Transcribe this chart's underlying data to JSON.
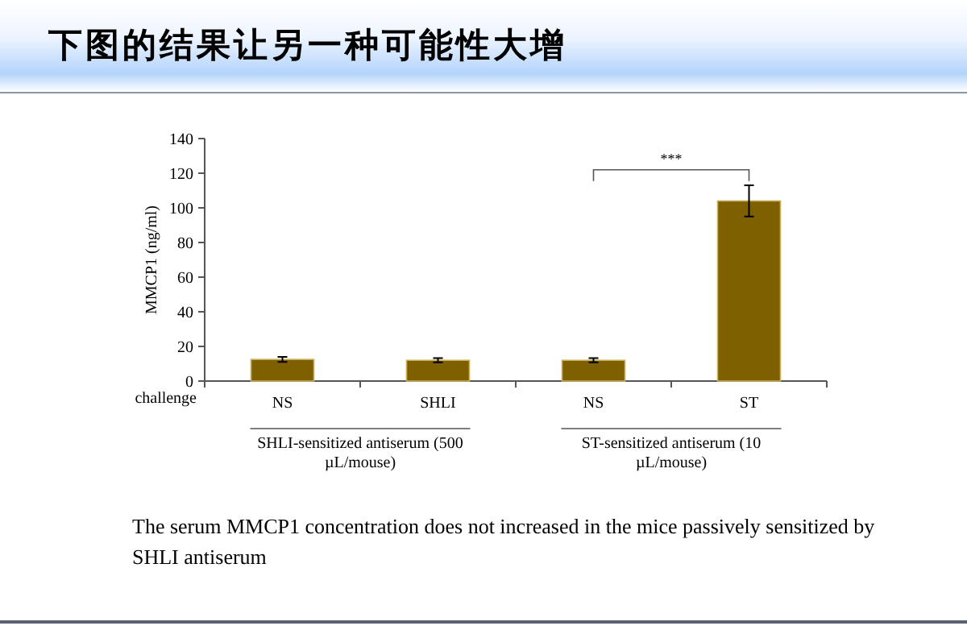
{
  "chart_data": {
    "type": "bar",
    "title": "下图的结果让另一种可能性大增",
    "ylabel": "MMCP1 (ng/ml)",
    "categories": [
      "NS",
      "SHLI",
      "NS",
      "ST"
    ],
    "values": [
      12.5,
      12,
      12,
      104
    ],
    "errors": [
      1.5,
      1.2,
      1.2,
      9
    ],
    "color": "#7f6000",
    "ylim": [
      0,
      140
    ],
    "yticks": [
      0,
      20,
      40,
      60,
      80,
      100,
      120,
      140
    ],
    "grid": false,
    "annotations": [
      "challenge",
      "SHLI-sensitized antiserum (500 µL/mouse)",
      "ST-sensitized antiserum (10 µL/mouse)",
      "***",
      "The serum MMCP1 concentration does not increased in the mice passively sensitized by SHLI antiserum"
    ]
  }
}
